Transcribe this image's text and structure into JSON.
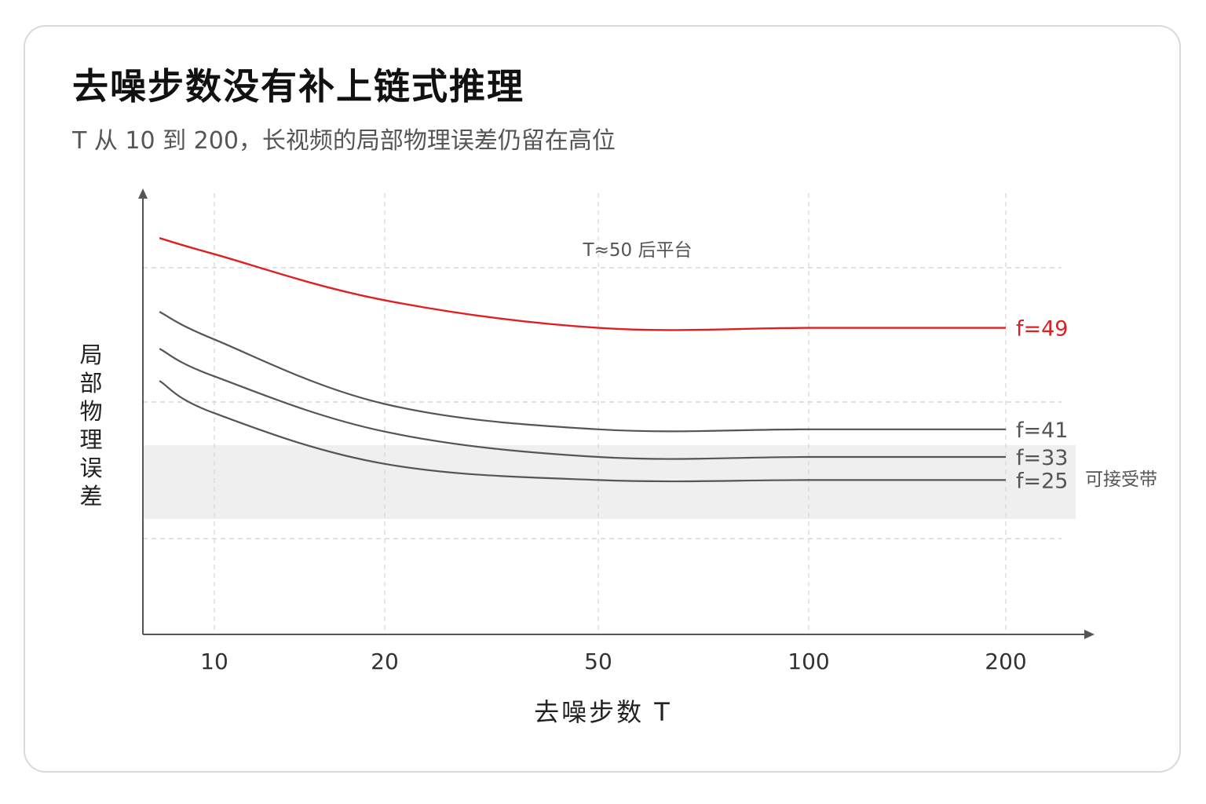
{
  "title": "去噪步数没有补上链式推理",
  "subtitle": "T 从 10 到 200，长视频的局部物理误差仍留在高位",
  "chart_data": {
    "type": "line",
    "xlabel": "去噪步数 T",
    "ylabel": "局部物理误差",
    "x_ticks": [
      10,
      20,
      50,
      100,
      200
    ],
    "grid": true,
    "colors": {
      "highlight": "#e02020",
      "normal": "#555555",
      "band": "#efefef"
    },
    "series": [
      {
        "name": "f=49",
        "x": [
          8,
          10,
          20,
          50,
          100,
          200
        ],
        "y": [
          0.86,
          0.825,
          0.725,
          0.665,
          0.665,
          0.665
        ],
        "highlight": true
      },
      {
        "name": "f=41",
        "x": [
          8,
          10,
          20,
          50,
          100,
          200
        ],
        "y": [
          0.7,
          0.64,
          0.5,
          0.445,
          0.445,
          0.445
        ],
        "highlight": false
      },
      {
        "name": "f=33",
        "x": [
          8,
          10,
          20,
          50,
          100,
          200
        ],
        "y": [
          0.62,
          0.56,
          0.44,
          0.385,
          0.385,
          0.385
        ],
        "highlight": false
      },
      {
        "name": "f=25",
        "x": [
          8,
          10,
          20,
          50,
          100,
          200
        ],
        "y": [
          0.55,
          0.48,
          0.37,
          0.335,
          0.335,
          0.335
        ],
        "highlight": false
      }
    ],
    "annotations": {
      "plateau": "T≈50 后平台",
      "band": "可接受带"
    }
  }
}
